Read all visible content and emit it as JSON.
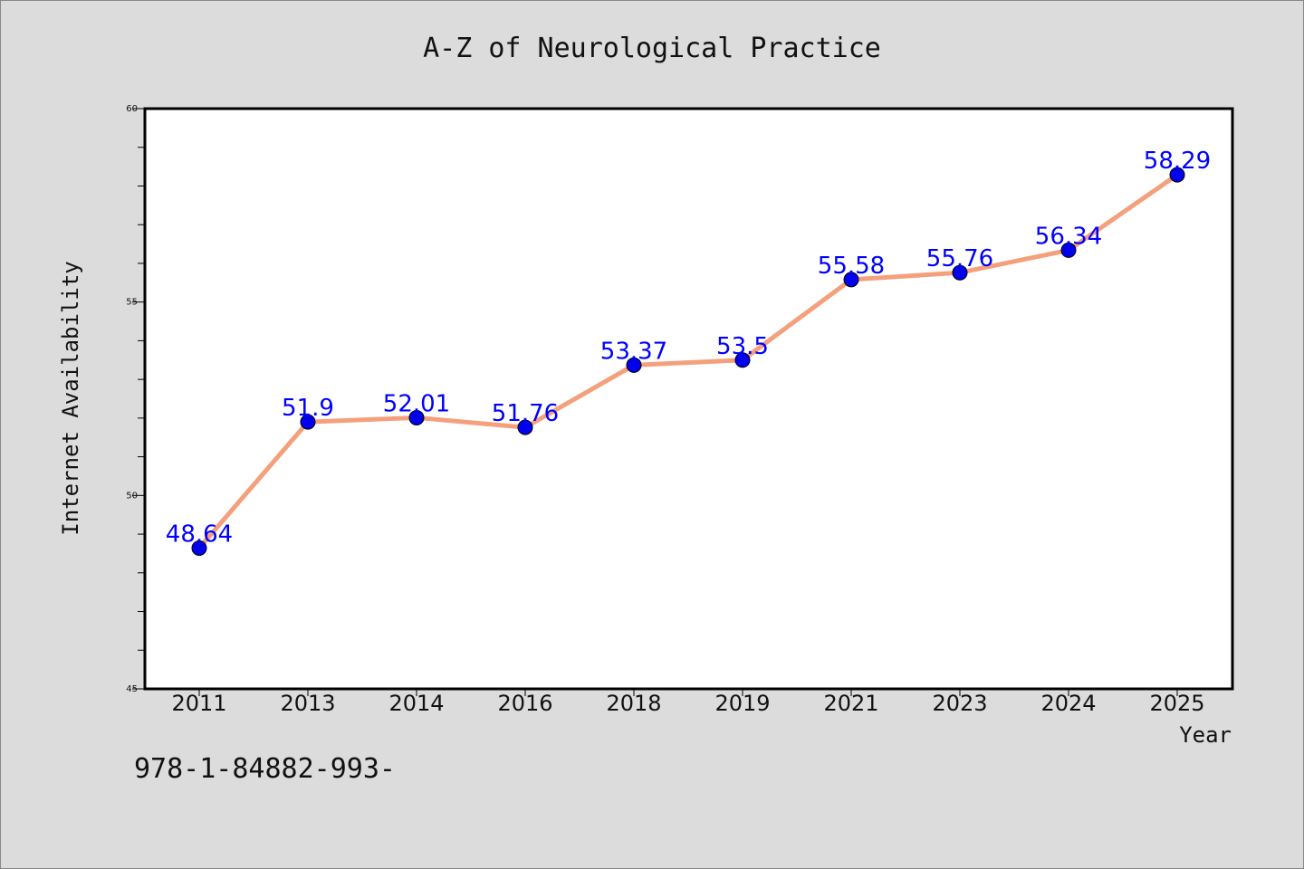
{
  "footer_text": "978-1-84882-993-",
  "chart_data": {
    "type": "line",
    "title": "A-Z of Neurological Practice",
    "xlabel": "Year",
    "ylabel": "Internet Availability",
    "categories": [
      "2011",
      "2013",
      "2014",
      "2016",
      "2018",
      "2019",
      "2021",
      "2023",
      "2024",
      "2025"
    ],
    "series": [
      {
        "values": [
          48.64,
          51.9,
          52.01,
          51.76,
          53.37,
          53.5,
          55.58,
          55.76,
          56.34,
          58.29
        ],
        "labels": [
          "48.64",
          "51.9",
          "52.01",
          "51.76",
          "53.37",
          "53.5",
          "55.58",
          "55.76",
          "56.34",
          "58.29"
        ],
        "line_color": "#f4a07c",
        "marker_color": "#0000ee",
        "label_color": "#0000ff"
      }
    ],
    "ylim": [
      45,
      60
    ],
    "yticks": [
      "45",
      "50",
      "55",
      "60"
    ],
    "grid": false,
    "legend": "none",
    "background": "#dcdcdc",
    "plot_background": "#ffffff"
  }
}
